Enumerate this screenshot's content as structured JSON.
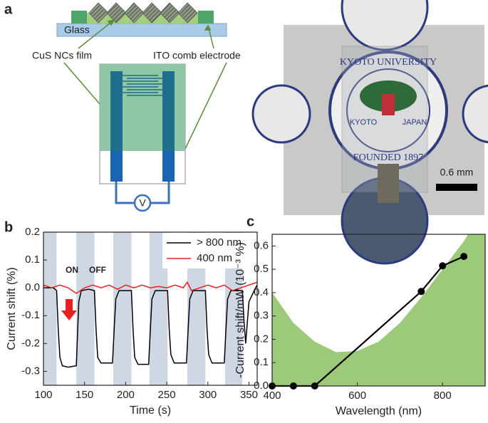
{
  "diagram": {
    "panel_label": "a",
    "labels": [
      "Glass",
      "CuS NCs film",
      "ITO comb electrode"
    ],
    "meter": "V"
  },
  "photo": {
    "texts": [
      "KYOTO UNIVERSITY",
      "FOUNDED 1897",
      "KYOTO",
      "JAPAN"
    ],
    "scale_bar": "0.6 mm"
  },
  "chart_data": [
    {
      "type": "line",
      "panel_label": "b",
      "xlabel": "Time (s)",
      "ylabel": "Current shift (%)",
      "xlim": [
        100,
        360
      ],
      "ylim": [
        -0.35,
        0.2
      ],
      "xticks": [
        100,
        150,
        200,
        250,
        300,
        350
      ],
      "yticks": [
        -0.3,
        -0.2,
        -0.1,
        {
          "value": 0,
          "label": "0.0"
        },
        0.1,
        0.2
      ],
      "shaded_regions": [
        [
          100,
          116
        ],
        [
          140,
          162
        ],
        [
          185,
          207
        ],
        [
          229,
          251
        ],
        [
          275,
          297
        ],
        [
          321,
          342
        ]
      ],
      "shade_color": "#cfd6e4",
      "legend": "upper right",
      "annotations": [
        "ON",
        "OFF"
      ],
      "series": [
        {
          "name": "> 800 nm",
          "color": "#000000",
          "x": [
            100,
            112,
            116,
            118,
            120,
            123,
            130,
            140,
            141,
            143,
            146,
            155,
            162,
            164,
            166,
            170,
            184,
            186,
            188,
            192,
            207,
            209,
            211,
            215,
            228,
            230,
            232,
            236,
            251,
            253,
            255,
            259,
            274,
            276,
            278,
            282,
            297,
            299,
            301,
            305,
            320,
            322,
            324,
            328,
            342,
            344,
            346,
            350,
            358,
            360
          ],
          "values": [
            0,
            0,
            -0.01,
            -0.15,
            -0.25,
            -0.28,
            -0.285,
            -0.28,
            -0.2,
            -0.05,
            -0.01,
            -0.005,
            -0.01,
            -0.15,
            -0.25,
            -0.27,
            -0.27,
            -0.15,
            -0.04,
            -0.01,
            -0.01,
            -0.15,
            -0.25,
            -0.275,
            -0.275,
            -0.15,
            -0.04,
            -0.01,
            -0.01,
            -0.15,
            -0.24,
            -0.27,
            -0.27,
            -0.15,
            -0.04,
            -0.01,
            -0.01,
            -0.15,
            -0.24,
            -0.27,
            -0.27,
            -0.15,
            -0.04,
            -0.01,
            -0.01,
            -0.12,
            -0.2,
            -0.05,
            0,
            0.01
          ]
        },
        {
          "name": "400 nm",
          "color": "#e8201f",
          "x": [
            100,
            110,
            120,
            130,
            140,
            150,
            160,
            170,
            180,
            190,
            200,
            210,
            220,
            230,
            240,
            250,
            260,
            270,
            275,
            280,
            290,
            300,
            310,
            320,
            330,
            340,
            350,
            360
          ],
          "values": [
            0.01,
            0.0,
            0.01,
            0.0,
            -0.02,
            0.0,
            0.01,
            0.0,
            0.01,
            -0.005,
            0.01,
            0.0,
            0.01,
            0.0,
            0.005,
            0.0,
            0.01,
            0.0,
            0.02,
            -0.01,
            0.0,
            0.01,
            0.0,
            0.01,
            -0.01,
            0.0,
            0.01,
            0.02
          ]
        }
      ]
    },
    {
      "type": "line",
      "panel_label": "c",
      "xlabel": "Wavelength (nm)",
      "ylabel": "-Current shift/mW (10⁻³ %)",
      "xlim": [
        400,
        900
      ],
      "ylim": [
        0,
        0.65
      ],
      "xticks": [
        400,
        600,
        800
      ],
      "yticks": [
        {
          "value": 0,
          "label": "0.0"
        },
        0.1,
        0.2,
        0.3,
        0.4,
        0.5,
        0.6
      ],
      "series": [
        {
          "fill": true,
          "color": "#9dc97a",
          "x": [
            400,
            450,
            500,
            550,
            600,
            650,
            700,
            750,
            800,
            850,
            860,
            900
          ],
          "values": [
            0.4,
            0.27,
            0.19,
            0.145,
            0.15,
            0.19,
            0.27,
            0.38,
            0.5,
            0.62,
            0.65,
            0.65
          ]
        },
        {
          "markers": true,
          "color": "#000000",
          "x": [
            400,
            450,
            500,
            750,
            800,
            850
          ],
          "values": [
            0,
            0,
            0,
            0.405,
            0.515,
            0.555
          ]
        }
      ]
    }
  ]
}
